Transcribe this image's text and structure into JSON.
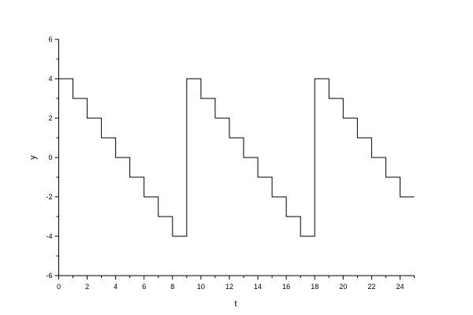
{
  "chart_data": {
    "type": "line",
    "style": "step",
    "title": "",
    "xlabel": "t",
    "ylabel": "y",
    "xlim": [
      0,
      25
    ],
    "ylim": [
      -6,
      6
    ],
    "xticks": [
      0,
      2,
      4,
      6,
      8,
      10,
      12,
      14,
      16,
      18,
      20,
      22,
      24
    ],
    "yticks": [
      -6,
      -4,
      -2,
      0,
      2,
      4,
      6
    ],
    "grid": false,
    "line_color": "#000000",
    "series": [
      {
        "x": [
          0,
          1,
          2,
          3,
          4,
          5,
          6,
          7,
          8,
          9,
          10,
          11,
          12,
          13,
          14,
          15,
          16,
          17,
          18,
          19,
          20,
          21,
          22,
          23,
          24,
          25
        ],
        "values": [
          4,
          3,
          2,
          1,
          0,
          -1,
          -2,
          -3,
          -4,
          4,
          3,
          2,
          1,
          0,
          -1,
          -2,
          -3,
          -4,
          4,
          3,
          2,
          1,
          0,
          -1,
          -2,
          -2
        ]
      }
    ]
  }
}
